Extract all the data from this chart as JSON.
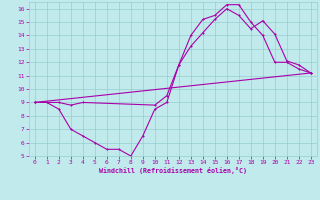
{
  "xlabel": "Windchill (Refroidissement éolien,°C)",
  "bg_color": "#c0eaec",
  "grid_color": "#98ccd0",
  "line_color": "#aa00aa",
  "xlim": [
    -0.5,
    23.5
  ],
  "ylim": [
    5,
    16.5
  ],
  "xticks": [
    0,
    1,
    2,
    3,
    4,
    5,
    6,
    7,
    8,
    9,
    10,
    11,
    12,
    13,
    14,
    15,
    16,
    17,
    18,
    19,
    20,
    21,
    22,
    23
  ],
  "yticks": [
    5,
    6,
    7,
    8,
    9,
    10,
    11,
    12,
    13,
    14,
    15,
    16
  ],
  "line1_x": [
    0,
    1,
    2,
    3,
    4,
    5,
    6,
    7,
    8,
    9,
    10,
    11,
    12,
    13,
    14,
    15,
    16,
    17,
    18,
    19,
    20,
    21,
    22,
    23
  ],
  "line1_y": [
    9,
    9,
    8.5,
    7,
    6.5,
    6,
    5.5,
    5.5,
    5,
    6.5,
    8.5,
    9,
    11.8,
    14,
    15.2,
    15.5,
    16.3,
    16.3,
    15,
    14,
    12.0,
    12.0,
    11.5,
    11.2
  ],
  "line2_x": [
    0,
    2,
    3,
    4,
    10,
    11,
    12,
    13,
    14,
    15,
    16,
    17,
    18,
    19,
    20,
    21,
    22,
    23
  ],
  "line2_y": [
    9,
    9,
    8.8,
    9,
    8.8,
    9.5,
    11.8,
    13.2,
    14.2,
    15.2,
    16.0,
    15.5,
    14.5,
    15.1,
    14.1,
    12.1,
    11.8,
    11.2
  ],
  "line3_x": [
    0,
    23
  ],
  "line3_y": [
    9,
    11.2
  ]
}
